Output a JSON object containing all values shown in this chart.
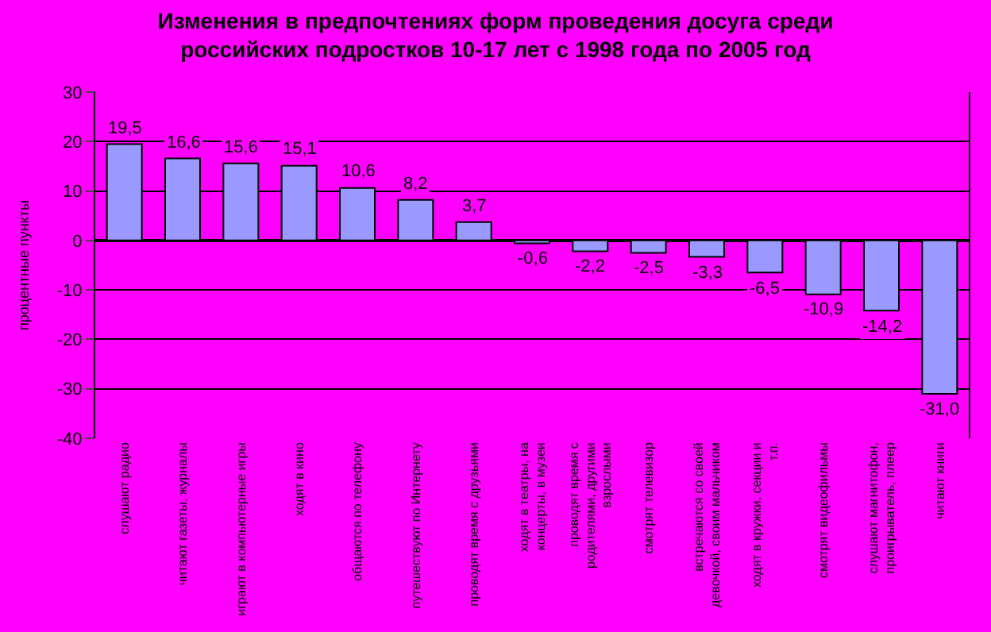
{
  "chart_data": {
    "type": "bar",
    "title": "Изменения в предпочтениях форм проведения досуга среди российских подростков 10-17 лет с 1998 года по 2005 год",
    "ylabel": "процентные пункты",
    "categories": [
      "слушают радио",
      "читают газеты, журналы",
      "играют в компьютерные игры",
      "ходят в кино",
      "общаются по телефону",
      "путешествуют по Интернету",
      "проводят время с друзьями",
      "ходят в театры, на концерты, в музеи",
      "проводят время с родителями, другими взрослыми",
      "смотрят телевизор",
      "встречаются со своей девочкой, своим мальчиком",
      "ходят в кружки, секции и т.п.",
      "смотрят видеофильмы",
      "слушают магнитофон, проигрыватель, плеер",
      "читают книги"
    ],
    "values": [
      19.5,
      16.6,
      15.6,
      15.1,
      10.6,
      8.2,
      3.7,
      -0.6,
      -2.2,
      -2.5,
      -3.3,
      -6.5,
      -10.9,
      -14.2,
      -31.0
    ],
    "value_labels": [
      "19,5",
      "16,6",
      "15,6",
      "15,1",
      "10,6",
      "8,2",
      "3,7",
      "-0,6",
      "-2,2",
      "-2,5",
      "-3,3",
      "-6,5",
      "-10,9",
      "-14,2",
      "-31,0"
    ],
    "color": "#9999ff",
    "ylim": [
      -40,
      30
    ],
    "yticks": [
      -40,
      -30,
      -20,
      -10,
      0,
      10,
      20,
      30
    ],
    "grid": "y",
    "legend": false
  }
}
